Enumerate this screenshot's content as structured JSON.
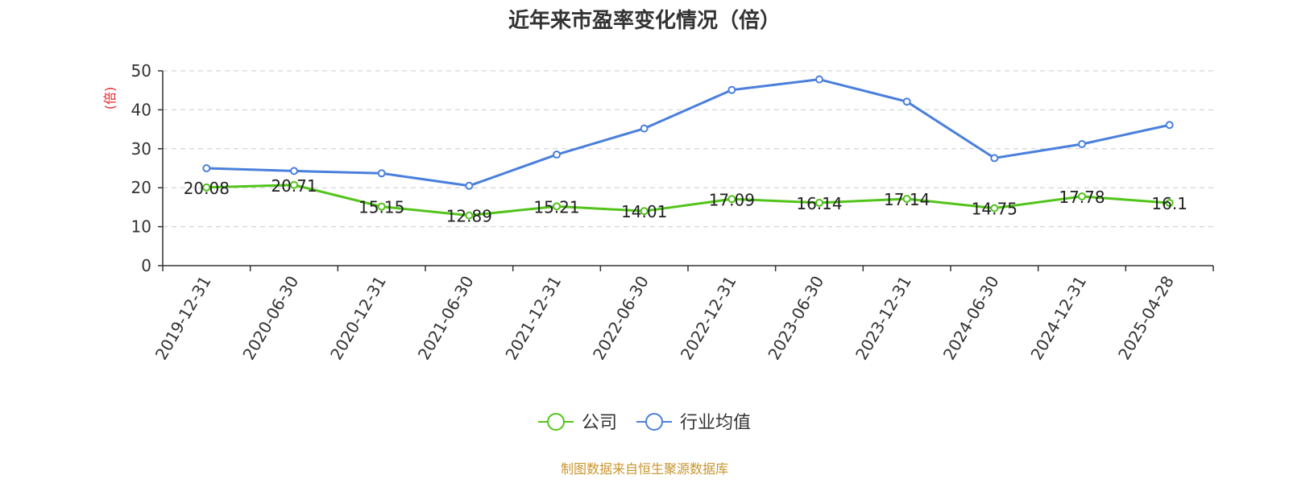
{
  "chart_data": {
    "type": "line",
    "title": "近年来市盈率变化情况（倍）",
    "ylabel": "(倍)",
    "xlabel": "",
    "categories": [
      "2019-12-31",
      "2020-06-30",
      "2020-12-31",
      "2021-06-30",
      "2021-12-31",
      "2022-06-30",
      "2022-12-31",
      "2023-06-30",
      "2023-12-31",
      "2024-06-30",
      "2024-12-31",
      "2025-04-28"
    ],
    "ylim": [
      0,
      50
    ],
    "yticks": [
      0,
      10,
      20,
      30,
      40,
      50
    ],
    "grid": true,
    "legend_position": "bottom-center",
    "series": [
      {
        "name": "公司",
        "color": "#52c41a",
        "values": [
          20.08,
          20.71,
          15.15,
          12.89,
          15.21,
          14.01,
          17.09,
          16.14,
          17.14,
          14.75,
          17.78,
          16.1
        ],
        "labels": [
          "20.08",
          "20.71",
          "15.15",
          "12.89",
          "15.21",
          "14.01",
          "17.09",
          "16.14",
          "17.14",
          "14.75",
          "17.78",
          "16.1"
        ],
        "show_labels": true
      },
      {
        "name": "行业均值",
        "color": "#4a7fdc",
        "values": [
          25.0,
          24.3,
          23.7,
          20.5,
          28.5,
          35.2,
          45.1,
          47.8,
          42.1,
          27.6,
          31.2,
          36.1
        ],
        "show_labels": false
      }
    ]
  },
  "source_text": "制图数据来自恒生聚源数据库",
  "colors": {
    "unit_label": "#e8222a",
    "source_text": "#c8962e",
    "axis": "#333333",
    "grid": "#cccccc"
  }
}
